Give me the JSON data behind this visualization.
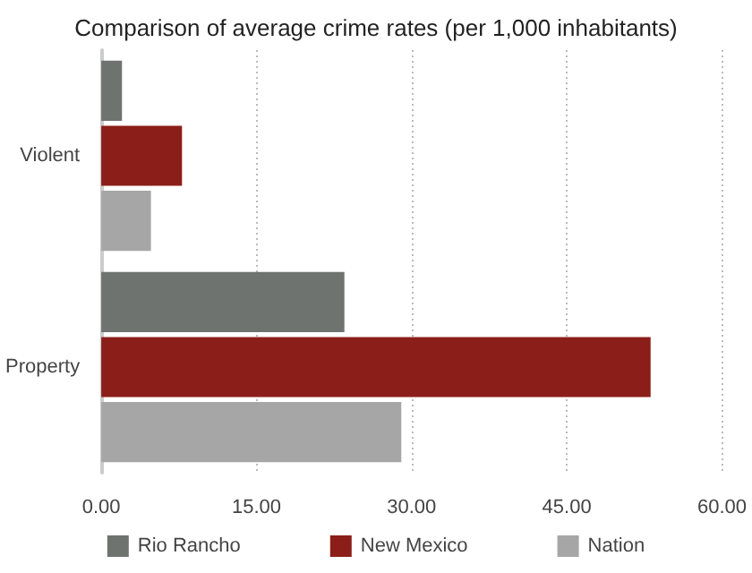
{
  "chart_data": {
    "type": "bar",
    "orientation": "horizontal",
    "title": "Comparison of average crime rates (per 1,000 inhabitants)",
    "categories": [
      "Violent",
      "Property"
    ],
    "series": [
      {
        "name": "Rio Rancho",
        "color": "#6f7370",
        "values": [
          2.0,
          23.5
        ]
      },
      {
        "name": "New Mexico",
        "color": "#8b1e18",
        "values": [
          7.8,
          53.1
        ]
      },
      {
        "name": "Nation",
        "color": "#a6a6a6",
        "values": [
          4.8,
          29.0
        ]
      }
    ],
    "xlim": [
      0,
      60
    ],
    "xticks": [
      {
        "value": 0,
        "label": "0.00"
      },
      {
        "value": 15,
        "label": "15.00"
      },
      {
        "value": 30,
        "label": "30.00"
      },
      {
        "value": 45,
        "label": "45.00"
      },
      {
        "value": 60,
        "label": "60.00"
      }
    ],
    "grid": "x",
    "legend": "bottom"
  }
}
